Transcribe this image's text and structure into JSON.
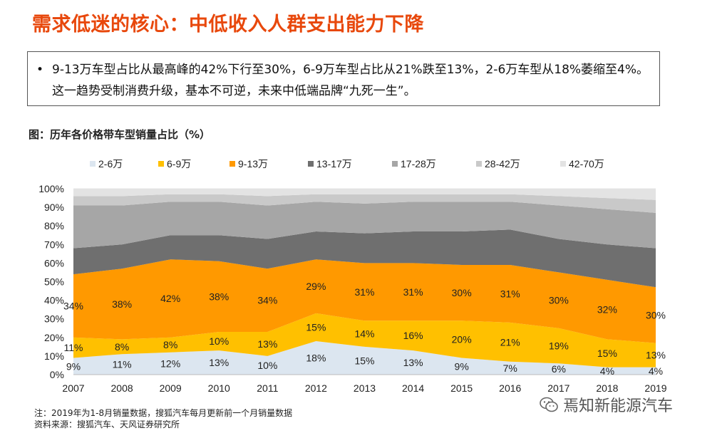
{
  "page": {
    "title": "需求低迷的核心：中低收入人群支出能力下降",
    "summary_bullet": "•",
    "summary_text": "9-13万车型占比从最高峰的42%下行至30%，6-9万车型占比从21%跌至13%，2-6万车型从18%萎缩至4%。这一趋势受制消费升级，基本不可逆，未来中低端品牌“九死一生”。",
    "chart_caption": "图：历年各价格带车型销量占比（%）",
    "note": "注：2019年为1-8月销量数据，搜狐汽车每月更新前一个月销量数据",
    "source": "资料来源：搜狐汽车、天风证券研究所",
    "watermark": "焉知新能源汽车"
  },
  "chart_data": {
    "type": "area",
    "stacked": true,
    "x": [
      "2007",
      "2008",
      "2009",
      "2010",
      "2011",
      "2012",
      "2013",
      "2014",
      "2015",
      "2016",
      "2017",
      "2018",
      "2019"
    ],
    "ylim": [
      0,
      100
    ],
    "yticks": [
      "0%",
      "10%",
      "20%",
      "30%",
      "40%",
      "50%",
      "60%",
      "70%",
      "80%",
      "90%",
      "100%"
    ],
    "legend_position": "top",
    "series": [
      {
        "name": "2-6万",
        "color": "#dce6f0",
        "values": [
          9,
          11,
          12,
          13,
          10,
          18,
          15,
          13,
          9,
          7,
          6,
          4,
          4
        ]
      },
      {
        "name": "6-9万",
        "color": "#ffc000",
        "values": [
          11,
          8,
          8,
          10,
          13,
          15,
          14,
          16,
          20,
          21,
          19,
          15,
          13
        ]
      },
      {
        "name": "9-13万",
        "color": "#ff9900",
        "values": [
          34,
          38,
          42,
          38,
          34,
          29,
          31,
          31,
          30,
          31,
          30,
          32,
          30
        ]
      },
      {
        "name": "13-17万",
        "color": "#6f6f6f",
        "values": [
          14,
          13,
          13,
          14,
          16,
          15,
          16,
          17,
          18,
          19,
          18,
          19,
          21
        ]
      },
      {
        "name": "17-28万",
        "color": "#a6a6a6",
        "values": [
          23,
          21,
          18,
          18,
          18,
          16,
          16,
          16,
          16,
          15,
          18,
          19,
          19
        ]
      },
      {
        "name": "28-42万",
        "color": "#c9c9c9",
        "values": [
          5,
          5,
          4,
          4,
          5,
          4,
          5,
          4,
          4,
          4,
          5,
          6,
          7
        ]
      },
      {
        "name": "42-70万",
        "color": "#e3e3e3",
        "values": [
          4,
          4,
          3,
          3,
          4,
          3,
          3,
          3,
          3,
          3,
          4,
          5,
          6
        ]
      }
    ],
    "data_labels": {
      "2-6万": [
        "9%",
        "11%",
        "12%",
        "13%",
        "10%",
        "18%",
        "15%",
        "13%",
        "9%",
        "7%",
        "6%",
        "4%",
        "4%"
      ],
      "6-9万": [
        "11%",
        "8%",
        "8%",
        "10%",
        "13%",
        "15%",
        "14%",
        "16%",
        "20%",
        "21%",
        "19%",
        "15%",
        "13%"
      ],
      "9-13万": [
        "34%",
        "38%",
        "42%",
        "38%",
        "34%",
        "29%",
        "31%",
        "31%",
        "30%",
        "31%",
        "30%",
        "32%",
        "30%"
      ]
    }
  }
}
